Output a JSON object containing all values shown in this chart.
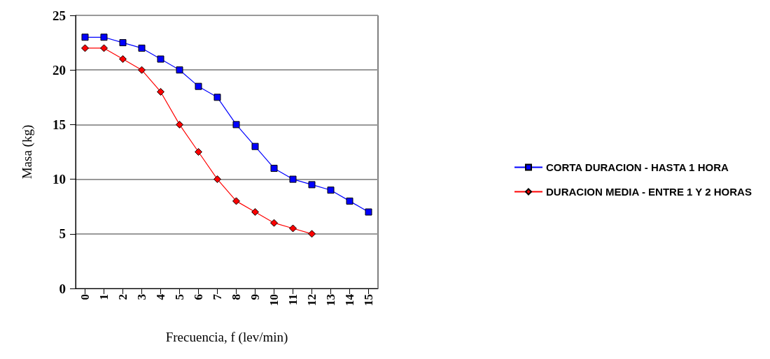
{
  "chart_data": {
    "type": "line",
    "xlabel": "Frecuencia, f (lev/min)",
    "ylabel": "Masa (kg)",
    "categories": [
      "0",
      "1",
      "2",
      "3",
      "4",
      "5",
      "6",
      "7",
      "8",
      "9",
      "10",
      "11",
      "12",
      "13",
      "14",
      "15"
    ],
    "series": [
      {
        "name": "CORTA DURACION - HASTA 1 HORA",
        "color": "#0000ff",
        "marker": "square",
        "values": [
          23,
          23,
          22.5,
          22,
          21,
          20,
          18.5,
          17.5,
          15,
          13,
          11,
          10,
          9.5,
          9,
          8,
          7
        ]
      },
      {
        "name": "DURACION MEDIA - ENTRE 1 Y 2 HORAS",
        "color": "#ff0000",
        "marker": "diamond",
        "values": [
          22,
          22,
          21,
          20,
          18,
          15,
          12.5,
          10,
          8,
          7,
          6,
          5.5,
          5,
          null,
          null,
          null
        ]
      }
    ],
    "ylim": [
      0,
      25
    ],
    "yticks": [
      0,
      5,
      10,
      15,
      20,
      25
    ],
    "grid": "y",
    "legend": "right",
    "line_style": "solid"
  }
}
